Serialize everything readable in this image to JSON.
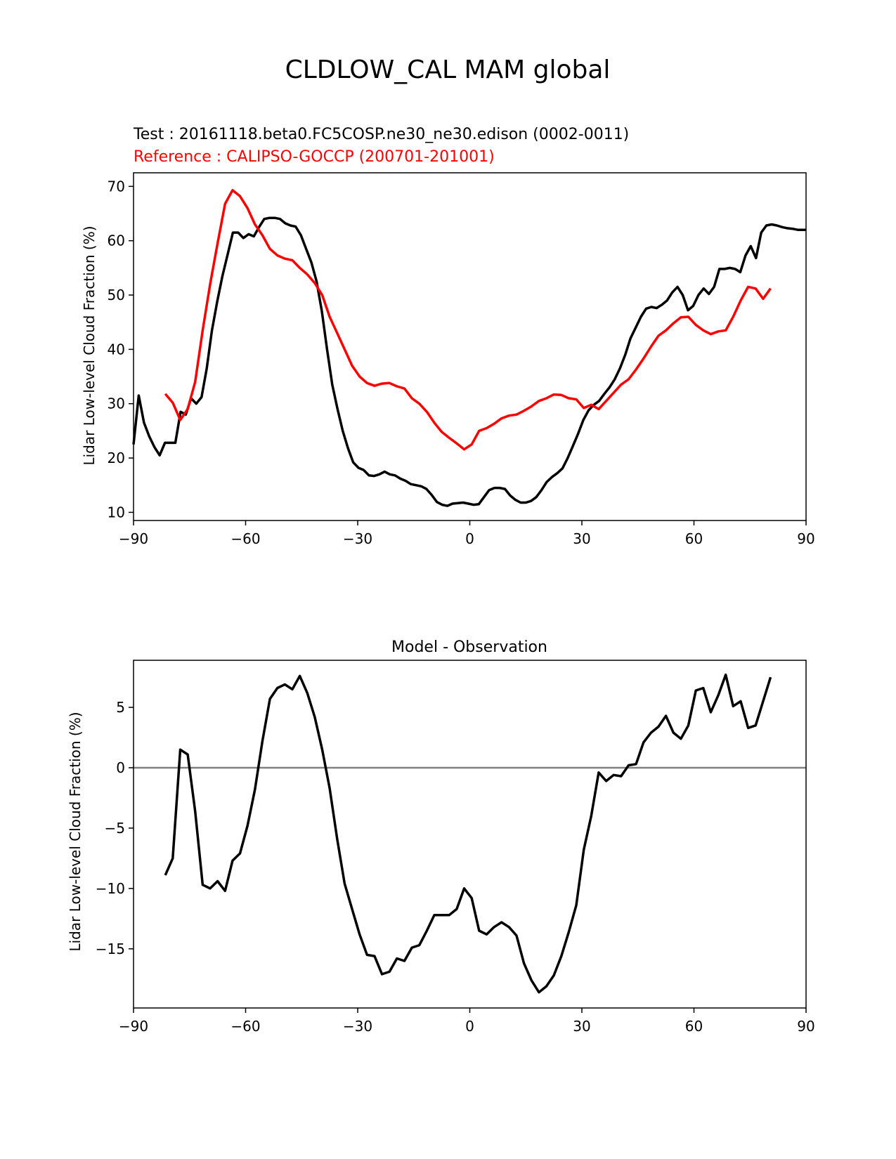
{
  "figure": {
    "title": "CLDLOW_CAL MAM global"
  },
  "colors": {
    "test": "#000000",
    "reference": "#ff0000",
    "zero_line": "#808080"
  },
  "chart_data": [
    {
      "type": "line",
      "title_test": "Test : 20161118.beta0.FC5COSP.ne30_ne30.edison (0002-0011)",
      "title_reference": "Reference : CALIPSO-GOCCP (200701-201001)",
      "xlabel": "",
      "ylabel": "Lidar Low-level Cloud Fraction (%)",
      "xlim": [
        -90,
        90
      ],
      "ylim": [
        8.5,
        72.5
      ],
      "xticks": [
        -90,
        -60,
        -30,
        0,
        30,
        60,
        90
      ],
      "xtick_labels": [
        "−90",
        "−60",
        "−30",
        "0",
        "30",
        "60",
        "90"
      ],
      "yticks": [
        10,
        20,
        30,
        40,
        50,
        60,
        70
      ],
      "ytick_labels": [
        "10",
        "20",
        "30",
        "40",
        "50",
        "60",
        "70"
      ],
      "series": [
        {
          "name": "Test",
          "color": "#000000",
          "x": [
            -90,
            -88.6,
            -87.2,
            -85.8,
            -84.4,
            -83.0,
            -81.6,
            -80.2,
            -78.8,
            -77.4,
            -76.0,
            -74.6,
            -73.2,
            -71.8,
            -70.4,
            -69.0,
            -67.6,
            -66.2,
            -64.8,
            -63.4,
            -62.0,
            -60.6,
            -59.2,
            -57.8,
            -56.4,
            -55.0,
            -53.6,
            -52.2,
            -50.8,
            -49.4,
            -48.0,
            -46.6,
            -45.2,
            -43.8,
            -42.4,
            -41.0,
            -39.6,
            -38.2,
            -36.8,
            -35.4,
            -34.0,
            -32.6,
            -31.2,
            -29.8,
            -28.4,
            -27.0,
            -25.6,
            -24.2,
            -22.8,
            -21.4,
            -20.0,
            -18.6,
            -17.2,
            -15.8,
            -14.4,
            -13.0,
            -11.6,
            -10.2,
            -8.8,
            -7.4,
            -6.0,
            -4.6,
            -3.2,
            -1.8,
            -0.4,
            1.0,
            2.4,
            3.8,
            5.2,
            6.6,
            8.0,
            9.4,
            10.8,
            12.2,
            13.6,
            15.0,
            16.4,
            17.8,
            19.2,
            20.6,
            22.0,
            23.4,
            24.8,
            26.2,
            27.6,
            29.0,
            30.4,
            31.8,
            33.2,
            34.6,
            36.0,
            37.4,
            38.8,
            40.2,
            41.6,
            43.0,
            44.4,
            45.8,
            47.2,
            48.6,
            50.0,
            51.4,
            52.8,
            54.2,
            55.6,
            57.0,
            58.4,
            59.8,
            61.2,
            62.6,
            64.0,
            65.4,
            66.8,
            68.2,
            69.6,
            71.0,
            72.4,
            73.8,
            75.2,
            76.6,
            78.0,
            79.4,
            80.8,
            82.2,
            83.6,
            85.0,
            86.4,
            87.8,
            89.2,
            90.0
          ],
          "values": [
            22.5,
            31.5,
            26.5,
            24.0,
            22.0,
            20.5,
            22.8,
            22.8,
            22.8,
            28.5,
            28.0,
            31.0,
            30.0,
            31.2,
            36.5,
            43.5,
            48.8,
            53.5,
            57.5,
            61.5,
            61.5,
            60.5,
            61.2,
            60.8,
            62.5,
            64.0,
            64.2,
            64.2,
            64.0,
            63.2,
            62.8,
            62.6,
            61.0,
            58.5,
            56.0,
            52.5,
            47.0,
            40.0,
            33.5,
            29.0,
            25.0,
            21.8,
            19.2,
            18.2,
            17.8,
            16.8,
            16.7,
            17.0,
            17.5,
            17.0,
            16.8,
            16.2,
            15.8,
            15.2,
            15.0,
            14.8,
            14.3,
            13.2,
            11.9,
            11.4,
            11.2,
            11.6,
            11.7,
            11.8,
            11.6,
            11.4,
            11.5,
            12.8,
            14.1,
            14.5,
            14.5,
            14.3,
            13.1,
            12.3,
            11.8,
            11.8,
            12.1,
            12.8,
            14.1,
            15.6,
            16.5,
            17.2,
            18.1,
            20.0,
            22.2,
            24.5,
            27.0,
            28.8,
            29.8,
            30.5,
            31.8,
            33.0,
            34.5,
            36.5,
            39.0,
            42.0,
            44.0,
            46.0,
            47.5,
            47.8,
            47.6,
            48.2,
            49.0,
            50.5,
            51.5,
            50.0,
            47.2,
            48.0,
            50.0,
            51.2,
            50.2,
            51.5,
            54.8,
            54.8,
            55.0,
            54.8,
            54.2,
            57.3,
            59.0,
            56.8,
            61.5,
            62.8,
            63.0,
            62.8,
            62.5,
            62.3,
            62.2,
            62.0,
            62.0,
            62.0
          ],
          "values_note": "sampled at x"
        },
        {
          "name": "Reference",
          "color": "#ff0000",
          "x": [
            -81.5,
            -79.5,
            -77.5,
            -75.5,
            -73.5,
            -71.5,
            -69.5,
            -67.5,
            -65.5,
            -63.5,
            -61.5,
            -59.5,
            -57.5,
            -55.5,
            -53.5,
            -51.5,
            -49.5,
            -47.5,
            -45.5,
            -43.5,
            -41.5,
            -39.5,
            -37.5,
            -35.5,
            -33.5,
            -31.5,
            -29.5,
            -27.5,
            -25.5,
            -23.5,
            -21.5,
            -19.5,
            -17.5,
            -15.5,
            -13.5,
            -11.5,
            -9.5,
            -7.5,
            -5.5,
            -3.5,
            -1.5,
            0.5,
            2.5,
            4.5,
            6.5,
            8.5,
            10.5,
            12.5,
            14.5,
            16.5,
            18.5,
            20.5,
            22.5,
            24.5,
            26.5,
            28.5,
            30.5,
            32.5,
            34.5,
            36.5,
            38.5,
            40.5,
            42.5,
            44.5,
            46.5,
            48.5,
            50.5,
            52.5,
            54.5,
            56.5,
            58.5,
            60.5,
            62.5,
            64.5,
            66.5,
            68.5,
            70.5,
            72.5,
            74.5,
            76.5,
            78.5,
            80.5
          ],
          "values": [
            31.8,
            30.2,
            27.0,
            29.0,
            34.0,
            43.5,
            52.0,
            59.5,
            66.8,
            69.3,
            68.2,
            66.0,
            63.0,
            61.0,
            58.5,
            57.3,
            56.7,
            56.4,
            55.0,
            53.8,
            52.2,
            50.0,
            46.0,
            43.0,
            40.0,
            37.0,
            35.0,
            33.8,
            33.3,
            33.7,
            33.8,
            33.2,
            32.8,
            31.0,
            30.0,
            28.5,
            26.5,
            24.8,
            23.7,
            22.7,
            21.6,
            22.5,
            25.0,
            25.5,
            26.3,
            27.3,
            27.8,
            28.0,
            28.7,
            29.5,
            30.5,
            31.0,
            31.7,
            31.6,
            31.0,
            30.8,
            29.2,
            29.8,
            29.0,
            30.5,
            32.0,
            33.5,
            34.5,
            36.3,
            38.3,
            40.5,
            42.5,
            43.5,
            44.8,
            45.9,
            46.0,
            44.5,
            43.5,
            42.8,
            43.3,
            43.5,
            46.0,
            49.0,
            51.5,
            51.2,
            49.3,
            51.2
          ]
        }
      ]
    },
    {
      "type": "line",
      "title": "Model - Observation",
      "xlabel": "",
      "ylabel": "Lidar Low-level Cloud Fraction (%)",
      "xlim": [
        -90,
        90
      ],
      "ylim": [
        -19.9,
        8.9
      ],
      "xticks": [
        -90,
        -60,
        -30,
        0,
        30,
        60,
        90
      ],
      "xtick_labels": [
        "−90",
        "−60",
        "−30",
        "0",
        "30",
        "60",
        "90"
      ],
      "yticks": [
        -15,
        -10,
        -5,
        0,
        5
      ],
      "ytick_labels": [
        "−15",
        "−10",
        "−5",
        "0",
        "5"
      ],
      "zero_line": 0,
      "series": [
        {
          "name": "Model - Observation",
          "color": "#000000",
          "x": [
            -81.5,
            -79.5,
            -77.5,
            -75.5,
            -73.5,
            -71.5,
            -69.5,
            -67.5,
            -65.5,
            -63.5,
            -61.5,
            -59.5,
            -57.5,
            -55.5,
            -53.5,
            -51.5,
            -49.5,
            -47.5,
            -45.5,
            -43.5,
            -41.5,
            -39.5,
            -37.5,
            -35.5,
            -33.5,
            -31.5,
            -29.5,
            -27.5,
            -25.5,
            -23.5,
            -21.5,
            -19.5,
            -17.5,
            -15.5,
            -13.5,
            -11.5,
            -9.5,
            -7.5,
            -5.5,
            -3.5,
            -1.5,
            0.5,
            2.5,
            4.5,
            6.5,
            8.5,
            10.5,
            12.5,
            14.5,
            16.5,
            18.5,
            20.5,
            22.5,
            24.5,
            26.5,
            28.5,
            30.5,
            32.5,
            34.5,
            36.5,
            38.5,
            40.5,
            42.5,
            44.5,
            46.5,
            48.5,
            50.5,
            52.5,
            54.5,
            56.5,
            58.5,
            60.5,
            62.5,
            64.5,
            66.5,
            68.5,
            70.5,
            72.5,
            74.5,
            76.5,
            78.5,
            80.5
          ],
          "values": [
            -8.9,
            -7.5,
            1.5,
            1.1,
            -3.6,
            -9.7,
            -10.0,
            -9.4,
            -10.2,
            -7.7,
            -7.1,
            -4.8,
            -1.8,
            2.2,
            5.7,
            6.6,
            6.9,
            6.5,
            7.6,
            6.2,
            4.2,
            1.5,
            -1.7,
            -5.9,
            -9.6,
            -11.7,
            -13.8,
            -15.5,
            -15.6,
            -17.1,
            -16.9,
            -15.8,
            -16.0,
            -14.9,
            -14.7,
            -13.5,
            -12.2,
            -12.2,
            -12.2,
            -11.7,
            -10.0,
            -10.8,
            -13.5,
            -13.8,
            -13.2,
            -12.8,
            -13.2,
            -13.9,
            -16.2,
            -17.6,
            -18.6,
            -18.1,
            -17.2,
            -15.6,
            -13.6,
            -11.4,
            -6.8,
            -4.0,
            -0.4,
            -1.1,
            -0.6,
            -0.7,
            0.2,
            0.3,
            2.1,
            2.9,
            3.4,
            4.3,
            2.9,
            2.4,
            3.5,
            6.4,
            6.6,
            4.6,
            6.0,
            7.7,
            5.1,
            5.5,
            3.3,
            3.5,
            5.5,
            7.5
          ]
        }
      ]
    }
  ]
}
